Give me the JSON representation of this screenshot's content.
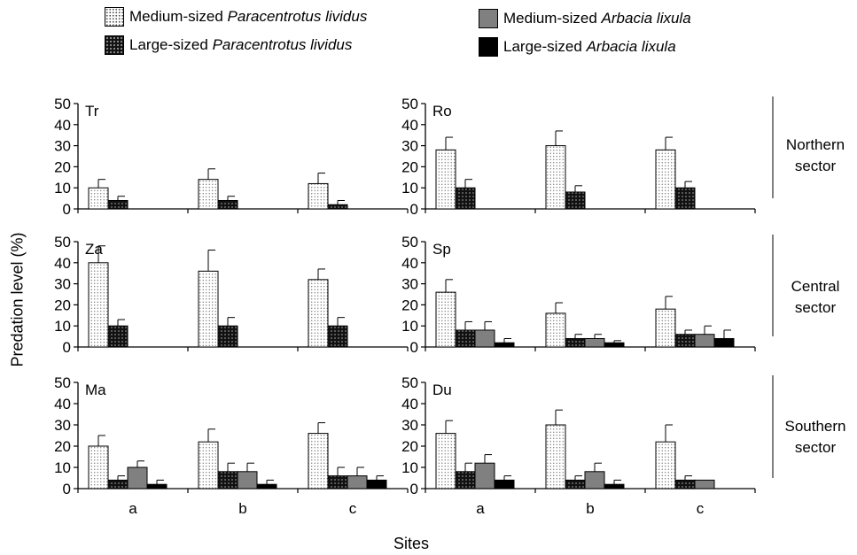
{
  "chart_data": {
    "type": "bar",
    "ylabel": "Predation level (%)",
    "xlabel": "Sites",
    "ylim": [
      0,
      50
    ],
    "yticks": [
      0,
      10,
      20,
      30,
      40,
      50
    ],
    "categories": [
      "a",
      "b",
      "c"
    ],
    "legend": [
      {
        "key": "medp",
        "prefix": "Medium-sized ",
        "species": "Paracentrotus lividus",
        "color": "#ffffff"
      },
      {
        "key": "largep",
        "prefix": "Large-sized ",
        "species": "Paracentrotus lividus",
        "color": "#1a1a1a"
      },
      {
        "key": "meda",
        "prefix": "Medium-sized ",
        "species": "Arbacia lixula",
        "color": "#808080"
      },
      {
        "key": "largea",
        "prefix": "Large-sized ",
        "species": "Arbacia lixula",
        "color": "#000000"
      }
    ],
    "sector_labels": [
      {
        "line1": "Northern",
        "line2": "sector"
      },
      {
        "line1": "Central",
        "line2": "sector"
      },
      {
        "line1": "Southern",
        "line2": "sector"
      }
    ],
    "panels": [
      {
        "label": "Tr",
        "row": 0,
        "col": 0,
        "values": [
          [
            10,
            4,
            null,
            null
          ],
          [
            14,
            4,
            null,
            null
          ],
          [
            12,
            2,
            null,
            null
          ]
        ],
        "errors": [
          [
            4,
            2,
            0,
            0
          ],
          [
            5,
            2,
            0,
            0
          ],
          [
            5,
            2,
            0,
            0
          ]
        ]
      },
      {
        "label": "Ro",
        "row": 0,
        "col": 1,
        "values": [
          [
            28,
            10,
            null,
            null
          ],
          [
            30,
            8,
            null,
            null
          ],
          [
            28,
            10,
            null,
            null
          ]
        ],
        "errors": [
          [
            6,
            4,
            0,
            0
          ],
          [
            7,
            3,
            0,
            0
          ],
          [
            6,
            3,
            0,
            0
          ]
        ]
      },
      {
        "label": "Za",
        "row": 1,
        "col": 0,
        "values": [
          [
            40,
            10,
            null,
            null
          ],
          [
            36,
            10,
            null,
            null
          ],
          [
            32,
            10,
            null,
            null
          ]
        ],
        "errors": [
          [
            8,
            3,
            0,
            0
          ],
          [
            10,
            4,
            0,
            0
          ],
          [
            5,
            4,
            0,
            0
          ]
        ]
      },
      {
        "label": "Sp",
        "row": 1,
        "col": 1,
        "values": [
          [
            26,
            8,
            8,
            2
          ],
          [
            16,
            4,
            4,
            2
          ],
          [
            18,
            6,
            6,
            4
          ]
        ],
        "errors": [
          [
            6,
            4,
            4,
            2
          ],
          [
            5,
            2,
            2,
            1
          ],
          [
            6,
            2,
            4,
            4
          ]
        ]
      },
      {
        "label": "Ma",
        "row": 2,
        "col": 0,
        "values": [
          [
            20,
            4,
            10,
            2
          ],
          [
            22,
            8,
            8,
            2
          ],
          [
            26,
            6,
            6,
            4
          ]
        ],
        "errors": [
          [
            5,
            2,
            3,
            2
          ],
          [
            6,
            4,
            4,
            2
          ],
          [
            5,
            4,
            4,
            2
          ]
        ]
      },
      {
        "label": "Du",
        "row": 2,
        "col": 1,
        "values": [
          [
            26,
            8,
            12,
            4
          ],
          [
            30,
            4,
            8,
            2
          ],
          [
            22,
            4,
            4,
            0
          ]
        ],
        "errors": [
          [
            6,
            4,
            4,
            2
          ],
          [
            7,
            2,
            4,
            2
          ],
          [
            8,
            2,
            0,
            0
          ]
        ]
      }
    ]
  }
}
